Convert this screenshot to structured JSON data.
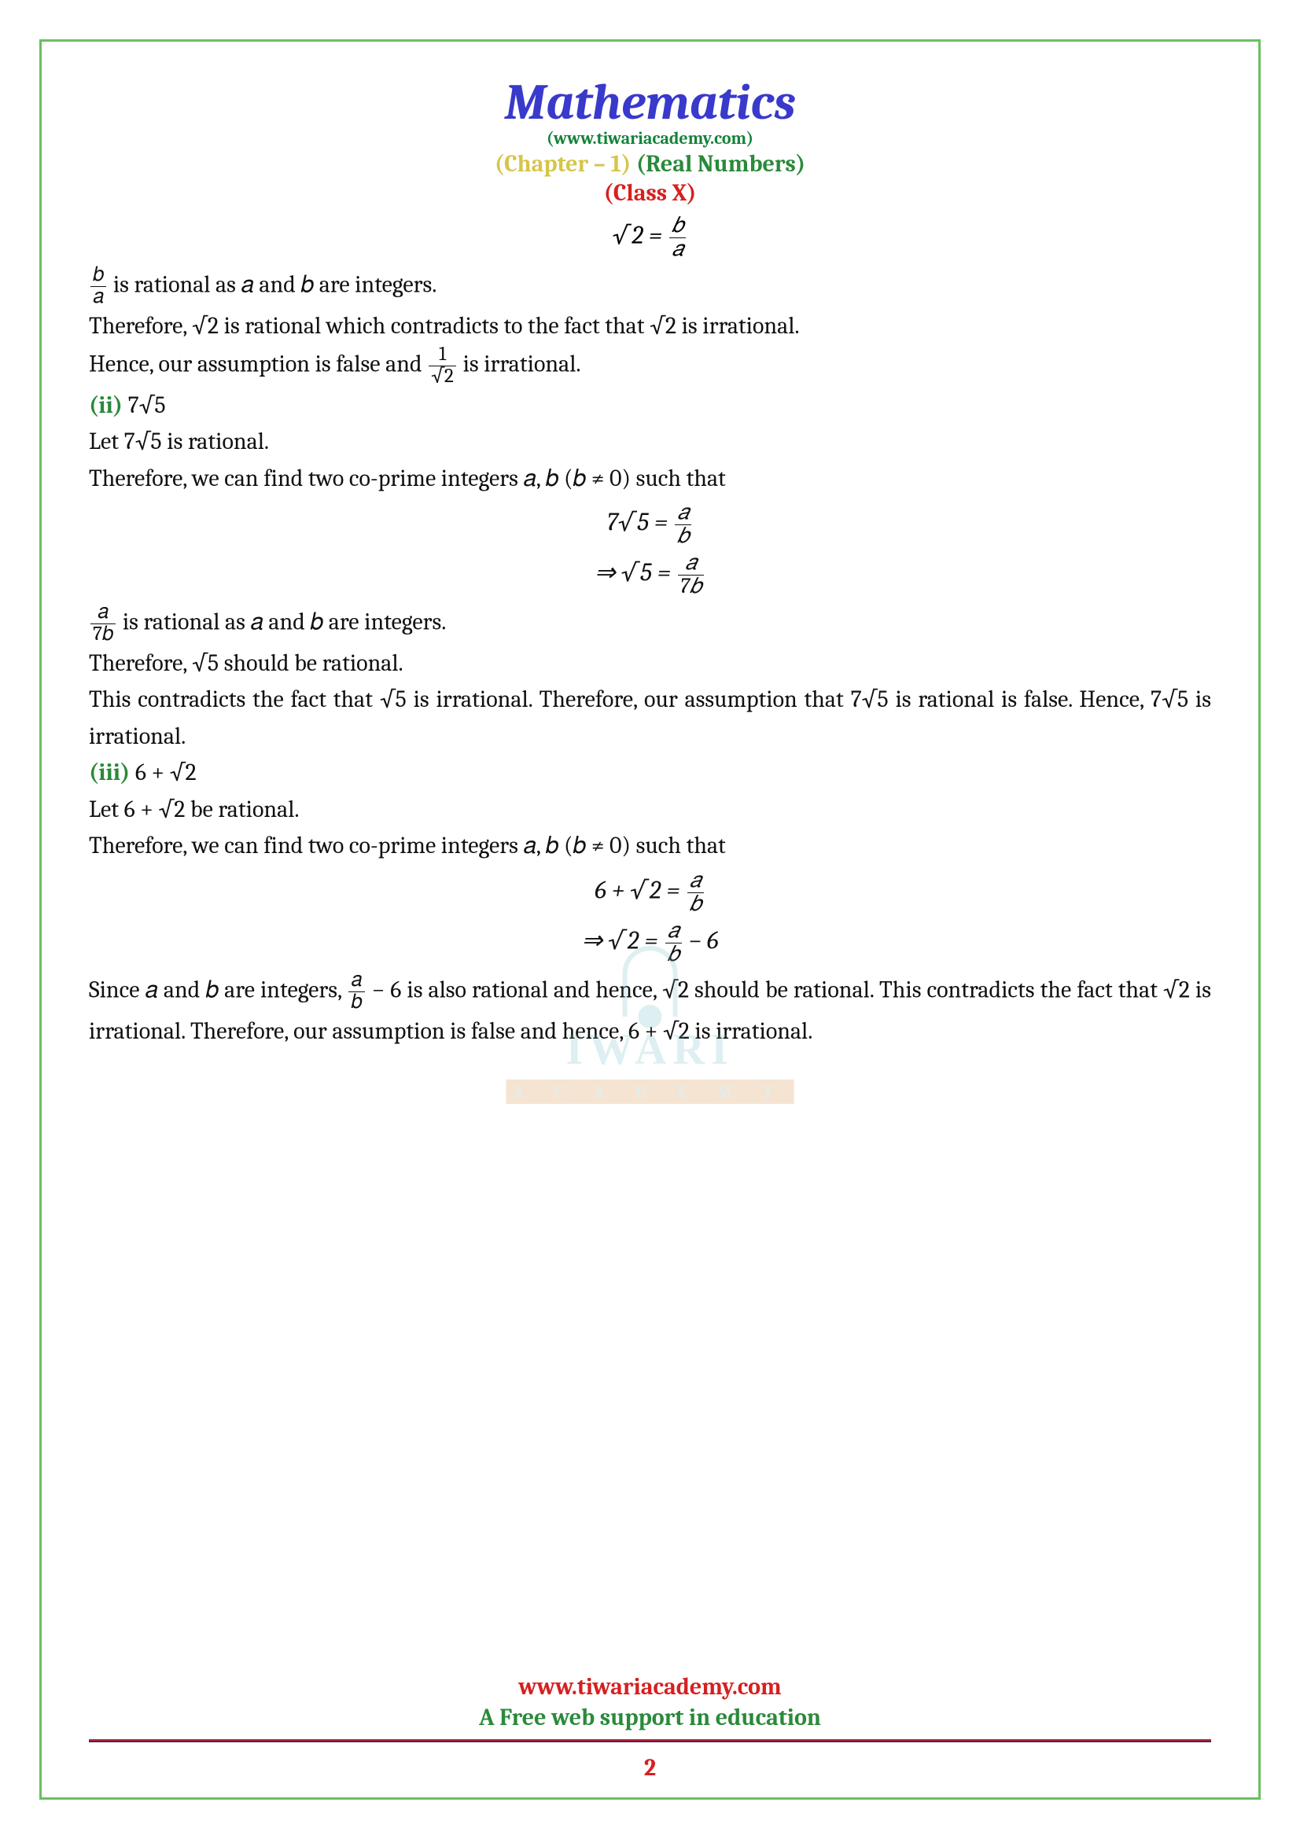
{
  "header": {
    "title": "Mathematics",
    "website": "(www.tiwariacademy.com)",
    "chapter_left": "(Chapter – 1) ",
    "chapter_right": "(Real Numbers)",
    "class_label": "(Class X)"
  },
  "eq1": {
    "lhs": "√2 = ",
    "num": "𝑏",
    "den": "𝑎"
  },
  "p1a_num": "𝑏",
  "p1a_den": "𝑎",
  "p1a_tail": " is rational as 𝑎 and 𝑏 are integers.",
  "p1b": "Therefore, √2  is rational which contradicts to the fact that √2 is irrational.",
  "p1c_head": "Hence, our assumption is false and ",
  "p1c_num": "1",
  "p1c_den": "√2",
  "p1c_tail": " is irrational.",
  "sec2": {
    "label": "(ii) ",
    "expr": "7√5",
    "let": "Let 7√5  is rational.",
    "find": "Therefore, we can find two co-prime integers 𝑎, 𝑏 (𝑏 ≠ 0) such that",
    "eqA_lhs": "7√5 = ",
    "eqA_num": "𝑎",
    "eqA_den": "𝑏",
    "eqB_lhs": "⇒ √5 = ",
    "eqB_num": "𝑎",
    "eqB_den": "7𝑏",
    "r_num": "𝑎",
    "r_den": "7𝑏",
    "r_tail": " is rational as 𝑎 and 𝑏 are integers.",
    "c1": "Therefore, √5  should be rational.",
    "c2": "This contradicts the fact that √5 is irrational. Therefore, our assumption that 7√5 is rational is false. Hence, 7√5 is irrational."
  },
  "sec3": {
    "label": "(iii) ",
    "expr": "6 + √2",
    "let": "Let 6 + √2  be rational.",
    "find": "Therefore, we can find two co-prime integers 𝑎, 𝑏 (𝑏 ≠ 0) such that",
    "eqA_lhs": "6 + √2 = ",
    "eqA_num": "𝑎",
    "eqA_den": "𝑏",
    "eqB_lhs": "⇒ √2 = ",
    "eqB_num": "𝑎",
    "eqB_den": "𝑏",
    "eqB_tail": " − 6",
    "c_head": "Since 𝑎 and 𝑏 are integers, ",
    "c_num": "𝑎",
    "c_den": "𝑏",
    "c_tail": " − 6 is also rational and hence, √2  should be rational. This contradicts the fact that √2  is irrational. Therefore, our assumption is false and hence, 6 + √2  is irrational."
  },
  "watermark": {
    "line1": "IWARI",
    "line2": "A C A D E M Y"
  },
  "footer": {
    "url": "www.tiwariacademy.com",
    "tagline": "A Free web support in education",
    "page": "2"
  },
  "colors": {
    "border": "#6ac060",
    "title": "#3939cc",
    "green": "#2a8a3a",
    "yellow": "#d6c54a",
    "red": "#d62020",
    "wm": "#6bb8c4"
  }
}
